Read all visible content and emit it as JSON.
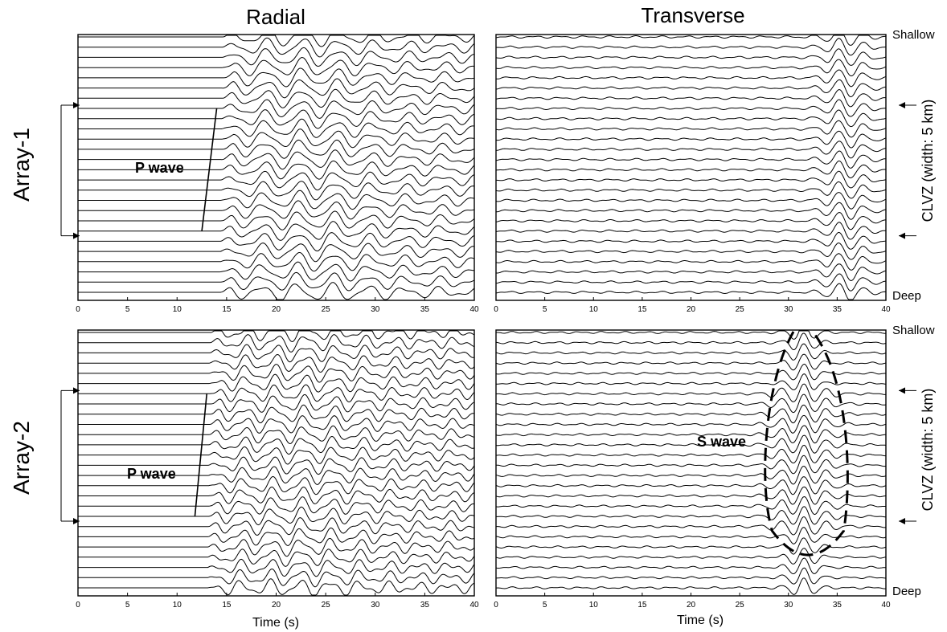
{
  "figure": {
    "column_titles": [
      "Radial",
      "Transverse"
    ],
    "row_labels": [
      "Array-1",
      "Array-2"
    ],
    "top_label": "Shallow",
    "bottom_label": "Deep",
    "zone_label": "CLVZ (width: 5 km)",
    "xlabel": "Time (s)"
  },
  "chart_data": [
    {
      "id": "array1-radial",
      "type": "line",
      "title": "Radial",
      "row": "Array-1",
      "xlabel": "",
      "xlim": [
        0,
        40
      ],
      "xticks": [
        0,
        5,
        10,
        15,
        20,
        25,
        30,
        35,
        40
      ],
      "trace_count": 26,
      "trace_order": "Shallow to Deep",
      "onset_time_range_s": [
        14,
        15
      ],
      "dominant_pulse_time_s": [
        20,
        25
      ],
      "clvz_trace_range": [
        7,
        19
      ],
      "annotation": {
        "text": "P wave",
        "line_time_s": [
          14,
          12.5
        ]
      }
    },
    {
      "id": "array1-transverse",
      "type": "line",
      "title": "Transverse",
      "row": "Array-1",
      "xlabel": "",
      "xlim": [
        0,
        40
      ],
      "xticks": [
        0,
        5,
        10,
        15,
        20,
        25,
        30,
        35,
        40
      ],
      "trace_count": 26,
      "trace_order": "Shallow to Deep",
      "dominant_pulse_time_s": [
        34,
        38
      ],
      "clvz_trace_range": [
        7,
        19
      ]
    },
    {
      "id": "array2-radial",
      "type": "line",
      "title": "Radial",
      "row": "Array-2",
      "xlabel": "Time (s)",
      "xlim": [
        0,
        40
      ],
      "xticks": [
        0,
        5,
        10,
        15,
        20,
        25,
        30,
        35,
        40
      ],
      "trace_count": 26,
      "trace_order": "Shallow to Deep",
      "onset_time_range_s": [
        13,
        14
      ],
      "dominant_pulse_time_s": [
        18,
        27
      ],
      "clvz_trace_range": [
        6,
        18
      ],
      "annotation": {
        "text": "P wave",
        "line_time_s": [
          13,
          11.8
        ]
      }
    },
    {
      "id": "array2-transverse",
      "type": "line",
      "title": "Transverse",
      "row": "Array-2",
      "xlabel": "Time (s)",
      "xlim": [
        0,
        40
      ],
      "xticks": [
        0,
        5,
        10,
        15,
        20,
        25,
        30,
        35,
        40
      ],
      "trace_count": 26,
      "trace_order": "Shallow to Deep",
      "dominant_pulse_time_s": [
        29,
        35
      ],
      "clvz_trace_range": [
        6,
        18
      ],
      "annotation": {
        "text": "S wave",
        "outline_time_s": [
          28,
          36
        ]
      }
    }
  ]
}
